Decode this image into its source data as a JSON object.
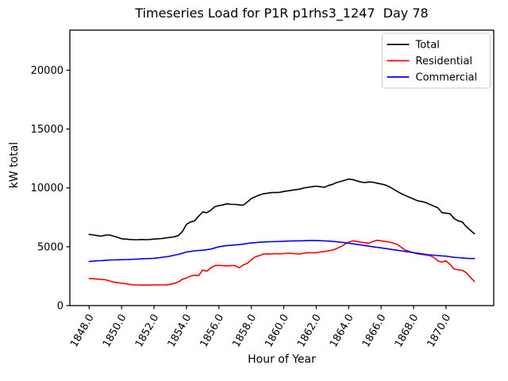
{
  "figure_title": "Timeseries Load for P1R p1rhs3_1247  Day 78",
  "chart_data": {
    "type": "line",
    "title": "Timeseries Load for P1R p1rhs3_1247  Day 78",
    "xlabel": "Hour of Year",
    "ylabel": "kW total",
    "grid": false,
    "background": "#ffffff",
    "axis_color": "#000000",
    "xlim": [
      1846.81,
      1872.94
    ],
    "ylim": [
      0,
      23400
    ],
    "x_start": 1848.0,
    "x_step": 0.25,
    "xticks": {
      "values": [
        1848,
        1850,
        1852,
        1854,
        1856,
        1858,
        1860,
        1862,
        1864,
        1866,
        1868,
        1870
      ],
      "labels": [
        "1848.0",
        "1850.0",
        "1852.0",
        "1854.0",
        "1856.0",
        "1858.0",
        "1860.0",
        "1862.0",
        "1864.0",
        "1866.0",
        "1868.0",
        "1870.0"
      ],
      "rotation_deg": 60
    },
    "yticks": {
      "values": [
        0,
        5000,
        10000,
        15000,
        20000
      ],
      "labels": [
        "0",
        "5000",
        "10000",
        "15000",
        "20000"
      ]
    },
    "legend": {
      "position": "upper right",
      "border_color": "#cccccc",
      "entries": [
        "Total",
        "Residential",
        "Commercial"
      ]
    },
    "series": [
      {
        "name": "Total",
        "color": "#000000",
        "values": [
          6050,
          6000,
          5950,
          5900,
          5980,
          6000,
          5900,
          5800,
          5680,
          5650,
          5620,
          5600,
          5600,
          5620,
          5600,
          5620,
          5650,
          5680,
          5700,
          5750,
          5800,
          5850,
          5950,
          6300,
          6900,
          7100,
          7200,
          7600,
          7950,
          7900,
          8100,
          8400,
          8500,
          8550,
          8650,
          8600,
          8600,
          8550,
          8530,
          8800,
          9100,
          9250,
          9400,
          9500,
          9550,
          9600,
          9600,
          9620,
          9700,
          9750,
          9800,
          9850,
          9900,
          10000,
          10050,
          10100,
          10150,
          10100,
          10050,
          10200,
          10300,
          10450,
          10550,
          10650,
          10750,
          10700,
          10600,
          10500,
          10450,
          10500,
          10480,
          10400,
          10330,
          10250,
          10100,
          9900,
          9700,
          9500,
          9350,
          9200,
          9050,
          8900,
          8850,
          8750,
          8600,
          8450,
          8300,
          7900,
          7850,
          7800,
          7400,
          7200,
          7100,
          6700,
          6400,
          6100
        ]
      },
      {
        "name": "Residential",
        "color": "#ff0000",
        "values": [
          2300,
          2280,
          2250,
          2220,
          2200,
          2100,
          2000,
          1950,
          1900,
          1850,
          1800,
          1760,
          1750,
          1740,
          1750,
          1740,
          1750,
          1760,
          1750,
          1760,
          1800,
          1900,
          2000,
          2240,
          2350,
          2500,
          2580,
          2550,
          3030,
          2920,
          3200,
          3400,
          3420,
          3400,
          3380,
          3400,
          3400,
          3210,
          3450,
          3590,
          3900,
          4150,
          4250,
          4380,
          4400,
          4380,
          4420,
          4400,
          4420,
          4450,
          4430,
          4400,
          4380,
          4450,
          4500,
          4490,
          4490,
          4550,
          4600,
          4650,
          4714,
          4850,
          5000,
          5200,
          5390,
          5500,
          5450,
          5380,
          5350,
          5300,
          5450,
          5550,
          5500,
          5450,
          5400,
          5300,
          5200,
          4950,
          4700,
          4600,
          4500,
          4400,
          4350,
          4300,
          4250,
          4100,
          3800,
          3700,
          3800,
          3500,
          3100,
          3050,
          3000,
          2800,
          2400,
          2050
        ]
      },
      {
        "name": "Commercial",
        "color": "#0000ff",
        "values": [
          3750,
          3780,
          3800,
          3820,
          3850,
          3870,
          3880,
          3890,
          3900,
          3910,
          3920,
          3940,
          3950,
          3970,
          3990,
          4000,
          4020,
          4060,
          4100,
          4150,
          4200,
          4280,
          4350,
          4450,
          4550,
          4600,
          4650,
          4680,
          4700,
          4750,
          4800,
          4900,
          5000,
          5050,
          5100,
          5120,
          5150,
          5180,
          5220,
          5280,
          5320,
          5350,
          5380,
          5400,
          5420,
          5430,
          5440,
          5450,
          5470,
          5480,
          5490,
          5500,
          5500,
          5510,
          5520,
          5520,
          5520,
          5510,
          5500,
          5480,
          5450,
          5420,
          5380,
          5350,
          5300,
          5250,
          5200,
          5150,
          5100,
          5050,
          5000,
          4950,
          4900,
          4850,
          4800,
          4750,
          4700,
          4650,
          4600,
          4550,
          4500,
          4450,
          4400,
          4350,
          4300,
          4280,
          4250,
          4220,
          4200,
          4150,
          4100,
          4080,
          4050,
          4020,
          4000,
          4000
        ]
      }
    ]
  }
}
